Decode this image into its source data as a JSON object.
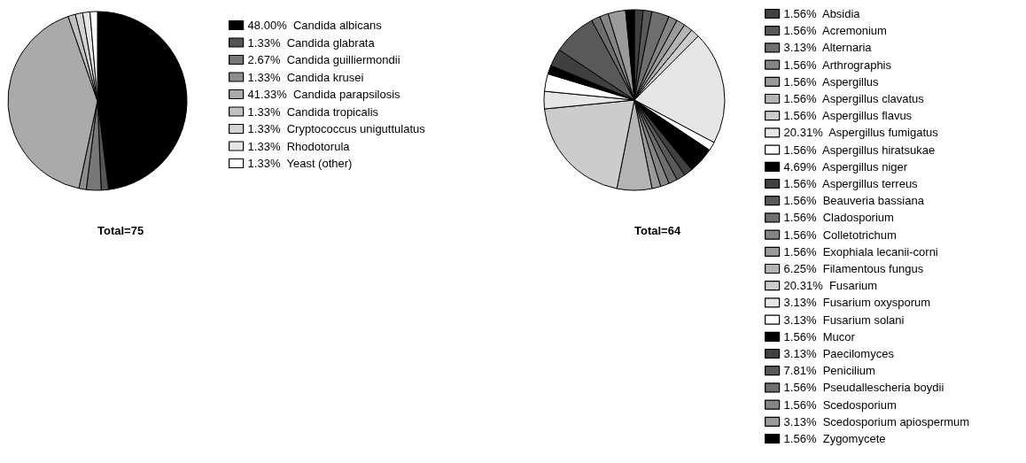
{
  "chart_data": [
    {
      "type": "pie",
      "categories": [
        "Candida albicans",
        "Candida glabrata",
        "Candida guilliermondii",
        "Candida krusei",
        "Candida parapsilosis",
        "Candida tropicalis",
        "Cryptococcus uniguttulatus",
        "Rhodotorula",
        "Yeast (other)"
      ],
      "values": [
        48.0,
        1.33,
        2.67,
        1.33,
        41.33,
        1.33,
        1.33,
        1.33,
        1.33
      ],
      "value_labels": [
        "48.00%",
        "1.33%",
        "2.67%",
        "1.33%",
        "41.33%",
        "1.33%",
        "1.33%",
        "1.33%",
        "1.33%"
      ],
      "colors": [
        "#000000",
        "#555555",
        "#777777",
        "#8c8c8c",
        "#aaaaaa",
        "#c0c0c0",
        "#d4d4d4",
        "#e6e6e6",
        "#ffffff"
      ],
      "legend": "right",
      "annotations": [
        "Total=75"
      ]
    },
    {
      "type": "pie",
      "categories": [
        "Absidia",
        "Acremonium",
        "Alternaria",
        "Arthrographis",
        "Aspergillus",
        "Aspergillus clavatus",
        "Aspergillus flavus",
        "Aspergillus fumigatus",
        "Aspergillus hiratsukae",
        "Aspergillus niger",
        "Aspergillus terreus",
        "Beauveria bassiana",
        "Cladosporium",
        "Colletotrichum",
        "Exophiala lecanii-corni",
        "Filamentous fungus",
        "Fusarium",
        "Fusarium oxysporum",
        "Fusarium solani",
        "Mucor",
        "Paecilomyces",
        "Penicilium",
        "Pseudallescheria boydii",
        "Scedosporium",
        "Scedosporium apiospermum",
        "Zygomycete"
      ],
      "values": [
        1.56,
        1.56,
        3.13,
        1.56,
        1.56,
        1.56,
        1.56,
        20.31,
        1.56,
        4.69,
        1.56,
        1.56,
        1.56,
        1.56,
        1.56,
        6.25,
        20.31,
        3.13,
        3.13,
        1.56,
        3.13,
        7.81,
        1.56,
        1.56,
        3.13,
        1.56
      ],
      "value_labels": [
        "1.56%",
        "1.56%",
        "3.13%",
        "1.56%",
        "1.56%",
        "1.56%",
        "1.56%",
        "20.31%",
        "1.56%",
        "4.69%",
        "1.56%",
        "1.56%",
        "1.56%",
        "1.56%",
        "1.56%",
        "6.25%",
        "20.31%",
        "3.13%",
        "3.13%",
        "1.56%",
        "3.13%",
        "7.81%",
        "1.56%",
        "1.56%",
        "3.13%",
        "1.56%"
      ],
      "colors": [
        "#404040",
        "#595959",
        "#6e6e6e",
        "#858585",
        "#9a9a9a",
        "#b4b4b4",
        "#cccccc",
        "#e6e6e6",
        "#ffffff",
        "#000000",
        "#404040",
        "#595959",
        "#6e6e6e",
        "#858585",
        "#9a9a9a",
        "#b4b4b4",
        "#cccccc",
        "#e6e6e6",
        "#ffffff",
        "#000000",
        "#404040",
        "#595959",
        "#6e6e6e",
        "#858585",
        "#9a9a9a",
        "#000000"
      ],
      "legend": "right",
      "annotations": [
        "Total=64"
      ]
    }
  ]
}
